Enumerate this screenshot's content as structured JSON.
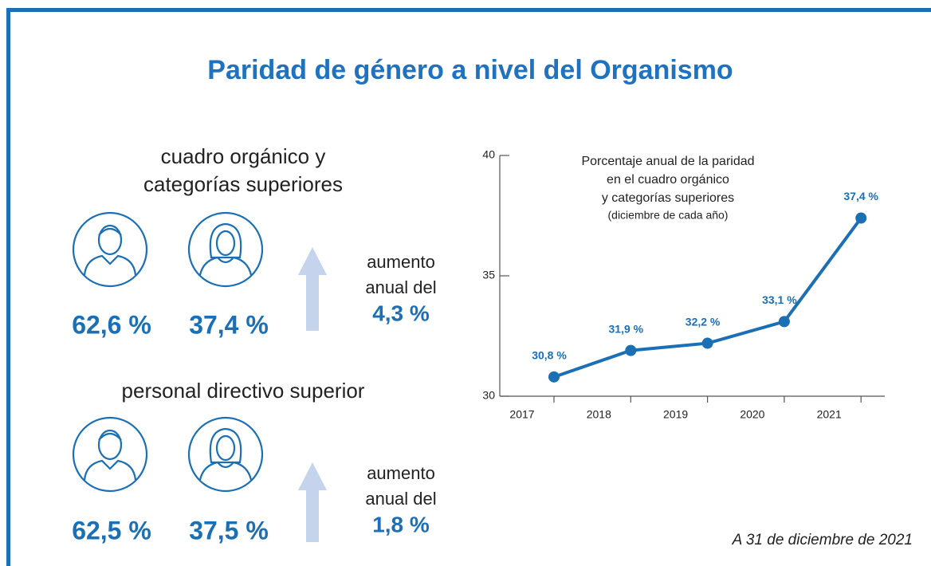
{
  "title": "Paridad de género a nivel del Organismo",
  "sections": [
    {
      "heading": [
        "cuadro orgánico y",
        "categorías superiores"
      ],
      "men": "62,6 %",
      "women": "37,4 %",
      "increase_label": [
        "aumento",
        "anual del"
      ],
      "increase": "4,3 %"
    },
    {
      "heading": [
        "personal directivo superior"
      ],
      "men": "62,5 %",
      "women": "37,5 %",
      "increase_label": [
        "aumento",
        "anual del"
      ],
      "increase": "1,8 %"
    }
  ],
  "footnote": "A 31 de diciembre de 2021",
  "chart_data": {
    "type": "line",
    "title": [
      "Porcentaje anual de la paridad",
      "en el cuadro orgánico",
      "y categorías superiores"
    ],
    "subtitle": "(diciembre de cada año)",
    "categories": [
      "2017",
      "2018",
      "2019",
      "2020",
      "2021"
    ],
    "values": [
      30.8,
      31.9,
      32.2,
      33.1,
      37.4
    ],
    "value_labels": [
      "30,8 %",
      "31,9 %",
      "32,2 %",
      "33,1 %",
      "37,4 %"
    ],
    "color": "#1a6fb5",
    "ylim": [
      30,
      40
    ],
    "yticks": [
      30,
      35,
      40
    ]
  }
}
